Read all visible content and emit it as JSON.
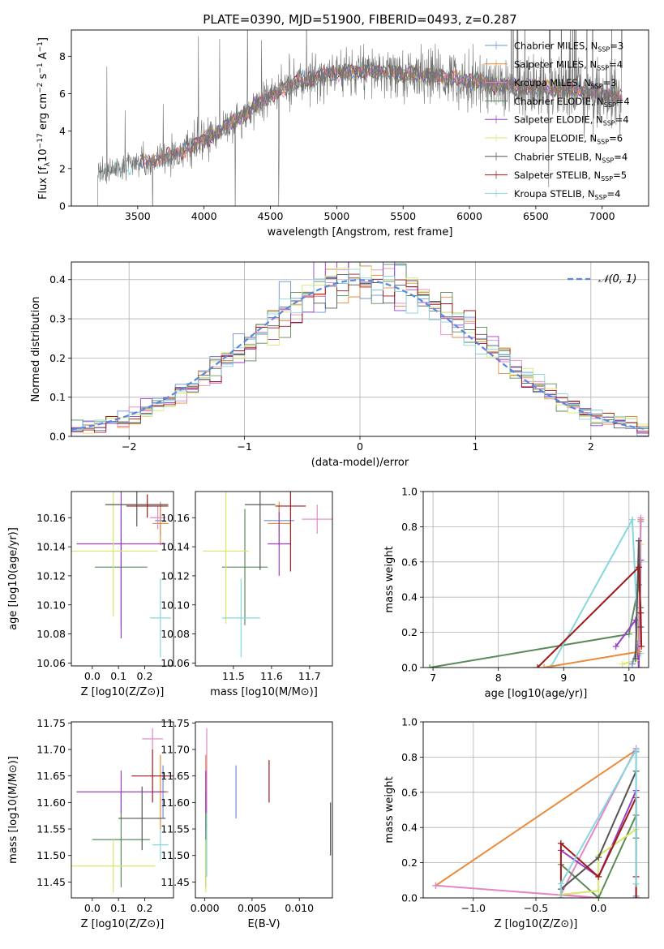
{
  "figure": {
    "title": "PLATE=0390, MJD=51900, FIBERID=0493, z=0.287"
  },
  "series_meta": [
    {
      "key": "chabrier_miles",
      "legend_main": "Chabrier MILES, N",
      "legend_sub": "SSP",
      "legend_end": "=3",
      "color": "#6b8fd6"
    },
    {
      "key": "salpeter_miles",
      "legend_main": "Salpeter MILES, N",
      "legend_sub": "SSP",
      "legend_end": "=4",
      "color": "#ea8a3a"
    },
    {
      "key": "kroupa_miles",
      "legend_main": "Kroupa MILES, N",
      "legend_sub": "SSP",
      "legend_end": "=3",
      "color": "#e286c4"
    },
    {
      "key": "chabrier_elodie",
      "legend_main": "Chabrier ELODIE, N",
      "legend_sub": "SSP",
      "legend_end": "=4",
      "color": "#5a8a5a"
    },
    {
      "key": "salpeter_elodie",
      "legend_main": "Salpeter ELODIE, N",
      "legend_sub": "SSP",
      "legend_end": "=4",
      "color": "#9a3fc4"
    },
    {
      "key": "kroupa_elodie",
      "legend_main": "Kroupa ELODIE, N",
      "legend_sub": "SSP",
      "legend_end": "=6",
      "color": "#d6e86a"
    },
    {
      "key": "chabrier_stelib",
      "legend_main": "Chabrier STELIB, N",
      "legend_sub": "SSP",
      "legend_end": "=4",
      "color": "#555555"
    },
    {
      "key": "salpeter_stelib",
      "legend_main": "Salpeter STELIB, N",
      "legend_sub": "SSP",
      "legend_end": "=5",
      "color": "#a01818"
    },
    {
      "key": "kroupa_stelib",
      "legend_main": "Kroupa STELIB, N",
      "legend_sub": "SSP",
      "legend_end": "=4",
      "color": "#86d6de"
    }
  ],
  "chart_data": [
    {
      "id": "spectrum",
      "type": "line",
      "title": "PLATE=0390, MJD=51900, FIBERID=0493, z=0.287",
      "xlabel": "wavelength [Angstrom, rest frame]",
      "ylabel_main": "Flux [f",
      "ylabel_sub": "λ",
      "ylabel_rest": "10",
      "ylabel_sup1": "−17",
      "ylabel_mid": " erg cm",
      "ylabel_sup2": "−2",
      "ylabel_mid2": " s",
      "ylabel_sup3": "−1",
      "ylabel_mid3": " A",
      "ylabel_sup4": "−1",
      "ylabel_end": "]",
      "xlim": [
        3000,
        7350
      ],
      "ylim": [
        0,
        9.4
      ],
      "xticks": [
        3500,
        4000,
        4500,
        5000,
        5500,
        6000,
        6500,
        7000
      ],
      "yticks": [
        0,
        2,
        4,
        6,
        8
      ],
      "data_x_range": [
        3200,
        7150
      ],
      "continuum_model_wavelength": [
        3200,
        3400,
        3600,
        3800,
        4000,
        4200,
        4400,
        4600,
        4800,
        5000,
        5200,
        5400,
        5600,
        5800,
        6000,
        6200,
        6400,
        6600,
        6800,
        7000,
        7150
      ],
      "continuum_model_flux": [
        1.7,
        2.1,
        2.4,
        2.8,
        3.5,
        4.4,
        5.4,
        6.3,
        6.8,
        7.1,
        7.2,
        7.1,
        7.0,
        6.9,
        6.7,
        6.5,
        6.3,
        6.3,
        6.2,
        6.0,
        5.9
      ],
      "legend_position": "upper right"
    },
    {
      "id": "residual_hist",
      "type": "histogram",
      "xlabel": "(data-model)/error",
      "ylabel": "Normed distribution",
      "xlim": [
        -2.5,
        2.5
      ],
      "ylim": [
        0,
        0.445
      ],
      "xticks": [
        -2,
        -1,
        0,
        1,
        2
      ],
      "yticks": [
        0.0,
        0.1,
        0.2,
        0.3,
        0.4
      ],
      "bin_width": 0.1,
      "reference_curve": {
        "name": "𝒩(0, 1)",
        "style": "dashed",
        "color": "#5b86dd"
      },
      "legend_position": "upper right",
      "grid": true
    },
    {
      "id": "age_vs_Z",
      "type": "errorbar",
      "xlabel": "Z [log10(Z/Z⊙)]",
      "ylabel": "age  [log10(age/yr)]",
      "xlim": [
        -0.08,
        0.31
      ],
      "ylim": [
        10.058,
        10.178
      ],
      "xticks": [
        0.0,
        0.1,
        0.2
      ],
      "yticks": [
        10.06,
        10.08,
        10.1,
        10.12,
        10.14,
        10.16
      ],
      "points": [
        {
          "series": "chabrier_miles",
          "x": 0.26,
          "y": 10.158,
          "xerr": 0.02,
          "yerr": 0.01
        },
        {
          "series": "salpeter_miles",
          "x": 0.26,
          "y": 10.156,
          "xerr": 0.03,
          "yerr": 0.015
        },
        {
          "series": "kroupa_miles",
          "x": 0.25,
          "y": 10.16,
          "xerr": 0.03,
          "yerr": 0.008
        },
        {
          "series": "chabrier_elodie",
          "x": 0.11,
          "y": 10.126,
          "xerr": 0.1,
          "yerr": 0.04
        },
        {
          "series": "salpeter_elodie",
          "x": 0.11,
          "y": 10.142,
          "xerr": 0.17,
          "yerr": 0.065
        },
        {
          "series": "kroupa_elodie",
          "x": 0.08,
          "y": 10.137,
          "xerr": 0.17,
          "yerr": 0.045
        },
        {
          "series": "chabrier_stelib",
          "x": 0.17,
          "y": 10.169,
          "xerr": 0.12,
          "yerr": 0.015
        },
        {
          "series": "salpeter_stelib",
          "x": 0.21,
          "y": 10.168,
          "xerr": 0.08,
          "yerr": 0.008
        },
        {
          "series": "kroupa_stelib",
          "x": 0.26,
          "y": 10.091,
          "xerr": 0.04,
          "yerr": 0.027
        }
      ]
    },
    {
      "id": "age_vs_mass",
      "type": "errorbar",
      "xlabel": "mass [log10(M/M⊙)]",
      "ylabel": "",
      "xlim": [
        11.4,
        11.76
      ],
      "ylim": [
        10.058,
        10.178
      ],
      "xticks": [
        11.5,
        11.6,
        11.7
      ],
      "yticks": [
        10.06,
        10.08,
        10.1,
        10.12,
        10.14,
        10.16
      ],
      "points": [
        {
          "series": "chabrier_miles",
          "x": 11.62,
          "y": 10.158,
          "xerr": 0.04,
          "yerr": 0.01
        },
        {
          "series": "salpeter_miles",
          "x": 11.62,
          "y": 10.156,
          "xerr": 0.03,
          "yerr": 0.015
        },
        {
          "series": "kroupa_miles",
          "x": 11.72,
          "y": 10.159,
          "xerr": 0.04,
          "yerr": 0.01
        },
        {
          "series": "chabrier_elodie",
          "x": 11.53,
          "y": 10.126,
          "xerr": 0.06,
          "yerr": 0.04
        },
        {
          "series": "salpeter_elodie",
          "x": 11.62,
          "y": 10.142,
          "xerr": 0.03,
          "yerr": 0.022
        },
        {
          "series": "kroupa_elodie",
          "x": 11.48,
          "y": 10.137,
          "xerr": 0.06,
          "yerr": 0.05
        },
        {
          "series": "chabrier_stelib",
          "x": 11.57,
          "y": 10.169,
          "xerr": 0.04,
          "yerr": 0.045
        },
        {
          "series": "salpeter_stelib",
          "x": 11.65,
          "y": 10.168,
          "xerr": 0.04,
          "yerr": 0.045
        },
        {
          "series": "kroupa_stelib",
          "x": 11.52,
          "y": 10.091,
          "xerr": 0.05,
          "yerr": 0.027
        }
      ]
    },
    {
      "id": "weight_vs_age",
      "type": "line",
      "xlabel": "age  [log10(age/yr)]",
      "ylabel": "mass weight",
      "xlim": [
        6.85,
        10.3
      ],
      "ylim": [
        0,
        1.0
      ],
      "xticks": [
        7,
        8,
        9,
        10
      ],
      "yticks": [
        0.0,
        0.2,
        0.4,
        0.6,
        0.8,
        1.0
      ],
      "grid": true,
      "series": [
        {
          "series": "chabrier_elodie",
          "x": [
            6.95,
            10.0,
            10.15,
            10.18
          ],
          "y": [
            0.0,
            0.19,
            0.47,
            0.34
          ]
        },
        {
          "series": "kroupa_stelib",
          "x": [
            8.8,
            10.05,
            10.15,
            10.18
          ],
          "y": [
            0.0,
            0.84,
            0.08,
            0.08
          ]
        },
        {
          "series": "salpeter_elodie",
          "x": [
            9.8,
            10.1,
            10.15,
            10.18
          ],
          "y": [
            0.12,
            0.27,
            0.0,
            0.61
          ]
        },
        {
          "series": "kroupa_elodie",
          "x": [
            9.9,
            10.1,
            10.15,
            10.18
          ],
          "y": [
            0.02,
            0.04,
            0.24,
            0.7
          ]
        },
        {
          "series": "chabrier_miles",
          "x": [
            10.05,
            10.15,
            10.18
          ],
          "y": [
            0.02,
            0.15,
            0.83
          ]
        },
        {
          "series": "salpeter_miles",
          "x": [
            8.7,
            10.15,
            10.18
          ],
          "y": [
            0.0,
            0.09,
            0.84
          ]
        },
        {
          "series": "kroupa_miles",
          "x": [
            10.15,
            10.18
          ],
          "y": [
            0.12,
            0.85
          ]
        },
        {
          "series": "chabrier_stelib",
          "x": [
            10.1,
            10.15,
            10.18
          ],
          "y": [
            0.05,
            0.72,
            0.23
          ]
        },
        {
          "series": "salpeter_stelib",
          "x": [
            8.6,
            10.15,
            10.18,
            10.19
          ],
          "y": [
            0.0,
            0.57,
            0.31,
            0.12
          ]
        }
      ]
    },
    {
      "id": "mass_vs_Z",
      "type": "errorbar",
      "xlabel": "Z [log10(Z/Z⊙)]",
      "ylabel": "mass [log10(M/M⊙)]",
      "xlim": [
        -0.08,
        0.31
      ],
      "ylim": [
        11.42,
        11.752
      ],
      "xticks": [
        0.0,
        0.1,
        0.2
      ],
      "yticks": [
        11.45,
        11.5,
        11.55,
        11.6,
        11.65,
        11.7,
        11.75
      ],
      "points": [
        {
          "series": "chabrier_miles",
          "x": 0.27,
          "y": 11.62,
          "xerr": 0.02,
          "yerr": 0.05
        },
        {
          "series": "salpeter_miles",
          "x": 0.26,
          "y": 11.62,
          "xerr": 0.03,
          "yerr": 0.07
        },
        {
          "series": "kroupa_miles",
          "x": 0.23,
          "y": 11.72,
          "xerr": 0.04,
          "yerr": 0.02
        },
        {
          "series": "chabrier_elodie",
          "x": 0.11,
          "y": 11.53,
          "xerr": 0.11,
          "yerr": 0.09
        },
        {
          "series": "salpeter_elodie",
          "x": 0.11,
          "y": 11.62,
          "xerr": 0.17,
          "yerr": 0.04
        },
        {
          "series": "kroupa_elodie",
          "x": 0.08,
          "y": 11.48,
          "xerr": 0.16,
          "yerr": 0.05
        },
        {
          "series": "chabrier_stelib",
          "x": 0.19,
          "y": 11.57,
          "xerr": 0.09,
          "yerr": 0.06
        },
        {
          "series": "salpeter_stelib",
          "x": 0.23,
          "y": 11.65,
          "xerr": 0.08,
          "yerr": 0.05
        },
        {
          "series": "kroupa_stelib",
          "x": 0.26,
          "y": 11.52,
          "xerr": 0.03,
          "yerr": 0.03
        }
      ]
    },
    {
      "id": "mass_vs_EBV",
      "type": "errorbar",
      "xlabel": "E(B-V)",
      "ylabel": "",
      "xlim": [
        -0.001,
        0.0135
      ],
      "ylim": [
        11.42,
        11.752
      ],
      "xticks": [
        0.0,
        0.005,
        0.01
      ],
      "yticks": [
        11.45,
        11.5,
        11.55,
        11.6,
        11.65,
        11.7,
        11.75
      ],
      "points": [
        {
          "series": "chabrier_miles",
          "x": 0.0033,
          "y": 11.62,
          "yerr": 0.05
        },
        {
          "series": "salpeter_miles",
          "x": 0.0001,
          "y": 11.62,
          "yerr": 0.07
        },
        {
          "series": "kroupa_miles",
          "x": 0.0002,
          "y": 11.66,
          "yerr": 0.08
        },
        {
          "series": "chabrier_elodie",
          "x": 0.0001,
          "y": 11.53,
          "yerr": 0.09
        },
        {
          "series": "salpeter_elodie",
          "x": 0.0001,
          "y": 11.62,
          "yerr": 0.04
        },
        {
          "series": "kroupa_elodie",
          "x": 0.0001,
          "y": 11.48,
          "yerr": 0.05
        },
        {
          "series": "chabrier_stelib",
          "x": 0.0133,
          "y": 11.55,
          "yerr": 0.05
        },
        {
          "series": "salpeter_stelib",
          "x": 0.0068,
          "y": 11.64,
          "yerr": 0.04
        },
        {
          "series": "kroupa_stelib",
          "x": 0.0002,
          "y": 11.52,
          "yerr": 0.06
        }
      ]
    },
    {
      "id": "weight_vs_Z",
      "type": "line",
      "xlabel": "Z [log10(Z/Z⊙)]",
      "ylabel": "mass weight",
      "xlim": [
        -1.4,
        0.4
      ],
      "ylim": [
        0,
        1.0
      ],
      "xticks": [
        -1.0,
        -0.5,
        0.0
      ],
      "yticks": [
        0.0,
        0.2,
        0.4,
        0.6,
        0.8,
        1.0
      ],
      "grid": true,
      "series": [
        {
          "series": "salpeter_miles",
          "x": [
            -1.3,
            0.3
          ],
          "y": [
            0.07,
            0.84
          ]
        },
        {
          "series": "kroupa_miles",
          "x": [
            -1.3,
            0.0,
            -0.3,
            0.3
          ],
          "y": [
            0.07,
            0.0,
            0.02,
            0.85
          ]
        },
        {
          "series": "chabrier_miles",
          "x": [
            0.3,
            0.3
          ],
          "y": [
            0.01,
            0.83
          ]
        },
        {
          "series": "chabrier_elodie",
          "x": [
            -0.3,
            0.0,
            0.3,
            0.3
          ],
          "y": [
            0.19,
            0.0,
            0.47,
            0.34
          ]
        },
        {
          "series": "salpeter_elodie",
          "x": [
            -0.3,
            0.0,
            0.3
          ],
          "y": [
            0.27,
            0.12,
            0.61
          ]
        },
        {
          "series": "kroupa_elodie",
          "x": [
            -0.3,
            0.0,
            0.0,
            0.3
          ],
          "y": [
            0.02,
            0.04,
            0.24,
            0.39
          ]
        },
        {
          "series": "chabrier_stelib",
          "x": [
            -0.3,
            0.0,
            0.3
          ],
          "y": [
            0.05,
            0.23,
            0.72
          ]
        },
        {
          "series": "salpeter_stelib",
          "x": [
            -0.3,
            -0.3,
            0.0,
            0.3,
            0.3,
            0.3
          ],
          "y": [
            0.0,
            0.31,
            0.12,
            0.57,
            0.12,
            0.0
          ]
        },
        {
          "series": "kroupa_stelib",
          "x": [
            -0.3,
            -0.3,
            0.3,
            0.3
          ],
          "y": [
            0.0,
            0.08,
            0.84,
            0.08
          ]
        }
      ]
    }
  ]
}
